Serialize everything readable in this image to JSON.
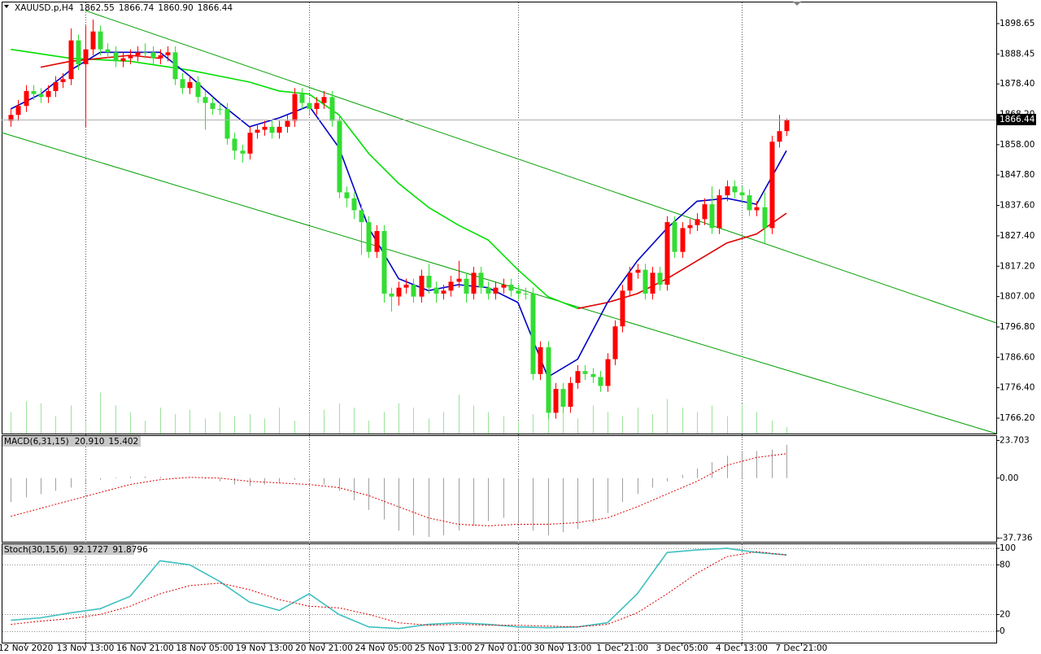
{
  "chart_data": [
    {
      "type": "candlestick",
      "title": "XAUUSD.p,H4",
      "readouts": [
        1862.55,
        1866.74,
        {
          "value": 1860.9,
          "label": "1860.90"
        },
        1866.44
      ],
      "xlim": [
        -1.23,
        132.13
      ],
      "ylim": [
        1761.02,
        1906.02
      ],
      "yticks": [
        1898.65,
        1888.45,
        {
          "value": 1878.4,
          "label": "1878.40"
        },
        {
          "value": 1868.2,
          "label": "1868.20"
        },
        {
          "value": 1858,
          "label": "1858.00"
        },
        {
          "value": 1847.8,
          "label": "1847.80"
        },
        {
          "value": 1837.6,
          "label": "1837.60"
        },
        {
          "value": 1827.4,
          "label": "1827.40"
        },
        {
          "value": 1817.2,
          "label": "1817.20"
        },
        {
          "value": 1807,
          "label": "1807.00"
        },
        {
          "value": 1796.8,
          "label": "1796.80"
        },
        {
          "value": 1786.6,
          "label": "1786.60"
        },
        {
          "value": 1776.4,
          "label": "1776.40"
        },
        {
          "value": 1766.2,
          "label": "1766.20"
        }
      ],
      "xticks": [
        {
          "value": 2,
          "label": "12 Nov 2020"
        },
        {
          "value": 10,
          "label": "13 Nov 13:00"
        },
        {
          "value": 18,
          "label": "16 Nov 21:00"
        },
        {
          "value": 26,
          "label": "18 Nov 05:00"
        },
        {
          "value": 34,
          "label": "19 Nov 13:00"
        },
        {
          "value": 42,
          "label": "20 Nov 21:00"
        },
        {
          "value": 50,
          "label": "24 Nov 05:00"
        },
        {
          "value": 58,
          "label": "25 Nov 13:00"
        },
        {
          "value": 66,
          "label": "27 Nov 01:00"
        },
        {
          "value": 74,
          "label": "30 Nov 13:00"
        },
        {
          "value": 82,
          "label": "1 Dec 21:00"
        },
        {
          "value": 90,
          "label": "3 Dec 05:00"
        },
        {
          "value": 98,
          "label": "4 Dec 13:00"
        },
        {
          "value": 106,
          "label": "7 Dec 21:00"
        }
      ],
      "separators": [
        10,
        40,
        68,
        98
      ],
      "up_color": "#ff0000",
      "down_color": "#33dd33",
      "open": [
        1866,
        1868,
        1871,
        1876,
        1875,
        1874,
        1876,
        1879,
        1880,
        1893,
        1885,
        1890,
        1896,
        1890,
        1889,
        1886,
        1887,
        1888,
        1889,
        1889,
        1887,
        1888,
        1889,
        1880,
        1877,
        1879,
        1874,
        1872,
        1870,
        1870,
        1860,
        1856,
        1855,
        1862,
        1863,
        1864,
        1862,
        1864,
        1866,
        1875,
        1872,
        1870,
        1872,
        1874,
        1866,
        1842,
        1840,
        1836,
        1832,
        1822,
        1829,
        1808,
        1807,
        1810,
        1811,
        1807,
        1814,
        1810,
        1808,
        1809,
        1812,
        1813,
        1808,
        1815,
        1810,
        1808,
        1810,
        1811,
        1809,
        1808,
        1808,
        1781,
        1790,
        1768,
        1776,
        1770,
        1778,
        1782,
        1781,
        1780,
        1777,
        1786,
        1797,
        1809,
        1815,
        1816,
        1808,
        1815,
        1811,
        1832,
        1822,
        1830,
        1831,
        1833,
        1838,
        1830,
        1841,
        1844,
        1842,
        1841,
        1836,
        1837,
        1830,
        1859,
        1862.55
      ],
      "high": [
        1870,
        1873,
        1878,
        1878,
        1877,
        1878,
        1881,
        1882,
        1897,
        1895,
        1898,
        1900,
        1898,
        1892,
        1891,
        1889,
        1890,
        1891,
        1892,
        1891,
        1890,
        1891,
        1891,
        1882,
        1881,
        1881,
        1876,
        1874,
        1872,
        1872,
        1862,
        1858,
        1864,
        1865,
        1866,
        1866,
        1866,
        1868,
        1877,
        1877,
        1874,
        1874,
        1876,
        1876,
        1868,
        1844,
        1842,
        1838,
        1834,
        1831,
        1831,
        1810,
        1812,
        1813,
        1813,
        1816,
        1818,
        1812,
        1811,
        1814,
        1819,
        1815,
        1817,
        1817,
        1812,
        1812,
        1813,
        1813,
        1811,
        1810,
        1810,
        1792,
        1792,
        1778,
        1778,
        1780,
        1784,
        1784,
        1783,
        1782,
        1788,
        1799,
        1811,
        1817,
        1818,
        1818,
        1817,
        1817,
        1834,
        1834,
        1832,
        1833,
        1835,
        1840,
        1844,
        1843,
        1846,
        1846,
        1844,
        1843,
        1839,
        1842,
        1861,
        1868,
        1866.74
      ],
      "low": [
        1864,
        1866,
        1869,
        1873,
        1872,
        1872,
        1874,
        1877,
        1878,
        1883,
        1864,
        1888,
        1888,
        1887,
        1884,
        1884,
        1885,
        1886,
        1887,
        1885,
        1885,
        1886,
        1878,
        1875,
        1875,
        1872,
        1863,
        1868,
        1868,
        1858,
        1853,
        1852,
        1853,
        1860,
        1861,
        1860,
        1860,
        1862,
        1864,
        1870,
        1868,
        1868,
        1870,
        1864,
        1840,
        1837,
        1833,
        1821,
        1820,
        1820,
        1805,
        1802,
        1804,
        1808,
        1805,
        1805,
        1808,
        1805,
        1806,
        1807,
        1810,
        1805,
        1806,
        1808,
        1806,
        1806,
        1808,
        1807,
        1806,
        1806,
        1779,
        1779,
        1766,
        1766,
        1768,
        1768,
        1776,
        1779,
        1778,
        1775,
        1775,
        1784,
        1795,
        1807,
        1813,
        1806,
        1806,
        1809,
        1809,
        1820,
        1820,
        1828,
        1829,
        1831,
        1828,
        1828,
        1839,
        1840,
        1839,
        1834,
        1834,
        1825,
        1828,
        1857,
        1860.9
      ],
      "close": [
        1868,
        1871,
        1876,
        1875,
        1874,
        1876,
        1879,
        1880,
        1893,
        1885,
        1890,
        1896,
        1890,
        1889,
        1886,
        1887,
        1888,
        1889,
        1889,
        1887,
        1888,
        1889,
        1880,
        1877,
        1879,
        1874,
        1872,
        1870,
        1870,
        1860,
        1856,
        1855,
        1862,
        1863,
        1864,
        1862,
        1864,
        1866,
        1875,
        1872,
        1870,
        1872,
        1874,
        1866,
        1842,
        1840,
        1836,
        1832,
        1822,
        1829,
        1808,
        1807,
        1810,
        1811,
        1807,
        1814,
        1810,
        1808,
        1809,
        1812,
        1813,
        1808,
        1815,
        1810,
        1808,
        1810,
        1811,
        1809,
        1808,
        1808,
        1781,
        1790,
        1768,
        1776,
        1770,
        1778,
        1782,
        1781,
        1780,
        1777,
        1786,
        1797,
        1809,
        1815,
        1816,
        1808,
        1815,
        1811,
        1832,
        1822,
        1830,
        1831,
        1833,
        1838,
        1830,
        1841,
        1844,
        1842,
        1841,
        1836,
        1837,
        1830,
        1859,
        1862.55,
        1866.44
      ],
      "volume": {
        "color": "#9be39b",
        "ylim": [
          0,
          10000
        ],
        "x": [
          0,
          2,
          4,
          6,
          8,
          10,
          12,
          14,
          16,
          18,
          20,
          22,
          24,
          26,
          28,
          30,
          32,
          34,
          36,
          38,
          40,
          42,
          44,
          46,
          48,
          50,
          52,
          54,
          56,
          58,
          60,
          62,
          64,
          66,
          68,
          70,
          72,
          74,
          76,
          78,
          80,
          82,
          84,
          86,
          88,
          90,
          92,
          94,
          96,
          98,
          100,
          102,
          104
        ],
        "values": [
          500,
          750,
          700,
          400,
          650,
          300,
          950,
          650,
          500,
          300,
          600,
          450,
          550,
          350,
          500,
          400,
          450,
          350,
          600,
          300,
          450,
          550,
          700,
          600,
          300,
          500,
          700,
          600,
          350,
          500,
          900,
          650,
          500,
          400,
          300,
          450,
          550,
          800,
          350,
          650,
          500,
          400,
          600,
          450,
          800,
          600,
          500,
          650,
          400,
          700,
          500,
          300,
          150
        ]
      },
      "trendlines": [
        {
          "color": "#00a000",
          "x": [
            10,
            132.13
          ],
          "values": [
            1903,
            1798.15
          ]
        },
        {
          "color": "#00a000",
          "x": [
            -1.23,
            132.13
          ],
          "values": [
            1862.06,
            1761.02
          ]
        }
      ],
      "series": [
        {
          "color": "#00e000",
          "x": [
            0,
            8,
            16,
            24,
            28,
            32,
            36,
            40,
            44,
            48,
            52,
            56,
            60,
            64,
            68,
            72,
            76
          ],
          "values": [
            1890,
            1887,
            1886,
            1883,
            1881,
            1879,
            1876,
            1875,
            1868,
            1855,
            1845,
            1837,
            1831,
            1826,
            1816,
            1807,
            1803
          ]
        },
        {
          "color": "#e00000",
          "x": [
            4,
            8,
            12,
            16,
            20,
            24,
            76,
            80,
            84,
            88,
            92,
            96,
            100,
            104
          ],
          "values": [
            1884,
            1886,
            1887,
            1888,
            1887,
            null,
            1803,
            1805,
            1808,
            1813,
            1819,
            1825,
            1828,
            1835
          ]
        },
        {
          "color": "#0000c8",
          "x": [
            0,
            4,
            8,
            12,
            16,
            20,
            24,
            28,
            32,
            36,
            40,
            44,
            48,
            52,
            56,
            60,
            64,
            68,
            72,
            76,
            80,
            84,
            88,
            92,
            96,
            100,
            104
          ],
          "values": [
            1870,
            1875,
            1883,
            1889,
            1889,
            1889,
            1881,
            1872,
            1864,
            1867,
            1871,
            1857,
            1830,
            1813,
            1809,
            1811,
            1810,
            1805,
            1780,
            1786,
            1805,
            1819,
            1830,
            1839,
            1840,
            1838,
            1856
          ]
        }
      ]
    },
    {
      "type": "macd",
      "title": "MACD(6,31,15)",
      "readouts": [
        {
          "value": 20.91,
          "label": "20.910"
        },
        15.402
      ],
      "ylim": [
        -40,
        27
      ],
      "yticks": [
        23.703,
        {
          "value": 0,
          "label": "0.00"
        },
        -37.736
      ],
      "bars": {
        "color": "#a0a0a0",
        "x": [
          0,
          2,
          4,
          6,
          8,
          10,
          12,
          14,
          16,
          18,
          20,
          22,
          24,
          26,
          28,
          30,
          32,
          34,
          36,
          38,
          40,
          42,
          44,
          46,
          48,
          50,
          52,
          54,
          56,
          58,
          60,
          62,
          64,
          66,
          68,
          70,
          72,
          74,
          76,
          78,
          80,
          82,
          84,
          86,
          88,
          90,
          92,
          94,
          96,
          98,
          100,
          102,
          104
        ],
        "values": [
          -15,
          -12,
          -10,
          -8,
          -6,
          -3,
          -1,
          0.5,
          1,
          1,
          0.8,
          0.5,
          0.3,
          -0.5,
          -2,
          -4,
          -5,
          -4,
          -3,
          -1,
          -2,
          -4,
          -8,
          -14,
          -20,
          -26,
          -33,
          -36,
          -37,
          -36,
          -33,
          -30,
          -27,
          -25,
          -28,
          -33,
          -36,
          -34,
          -32,
          -28,
          -22,
          -15,
          -10,
          -6,
          -2,
          2,
          6,
          10,
          14,
          16,
          17,
          18,
          20.91
        ]
      },
      "series": [
        {
          "color": "#e00000",
          "dashed": true,
          "x": [
            0,
            4,
            8,
            12,
            16,
            20,
            24,
            28,
            32,
            36,
            40,
            44,
            48,
            52,
            56,
            60,
            64,
            68,
            72,
            76,
            80,
            84,
            88,
            92,
            96,
            100,
            104
          ],
          "values": [
            -24,
            -19,
            -14,
            -9,
            -4,
            -1,
            0.5,
            0,
            -2,
            -3,
            -4,
            -6,
            -11,
            -18,
            -25,
            -29,
            -30,
            -29,
            -29,
            -28,
            -25,
            -18,
            -10,
            -2,
            8,
            13,
            15.402
          ]
        }
      ]
    },
    {
      "type": "line",
      "title": "Stoch(30,15,6)",
      "readouts": [
        92.1727,
        91.8796
      ],
      "ylim": [
        -14,
        106
      ],
      "yticks": [
        100,
        80,
        20,
        0
      ],
      "grid": true,
      "series": [
        {
          "color": "#40c0c0",
          "x": [
            0,
            4,
            8,
            12,
            16,
            20,
            24,
            28,
            32,
            36,
            40,
            44,
            48,
            52,
            56,
            60,
            64,
            68,
            72,
            76,
            80,
            84,
            88,
            92,
            96,
            100,
            104
          ],
          "values": [
            13,
            16,
            22,
            27,
            42,
            85,
            80,
            60,
            35,
            25,
            45,
            20,
            5,
            3,
            8,
            10,
            8,
            5,
            4,
            5,
            10,
            45,
            95,
            98,
            100,
            95,
            92.17
          ]
        },
        {
          "color": "#e00000",
          "dashed": true,
          "x": [
            0,
            4,
            8,
            12,
            16,
            20,
            24,
            28,
            32,
            36,
            40,
            44,
            48,
            52,
            56,
            60,
            64,
            68,
            72,
            76,
            80,
            84,
            88,
            92,
            96,
            100,
            104
          ],
          "values": [
            8,
            12,
            15,
            20,
            30,
            45,
            55,
            58,
            50,
            38,
            30,
            28,
            20,
            10,
            7,
            8,
            7,
            7,
            6,
            5,
            8,
            22,
            45,
            70,
            90,
            96,
            91.88
          ]
        }
      ]
    }
  ]
}
